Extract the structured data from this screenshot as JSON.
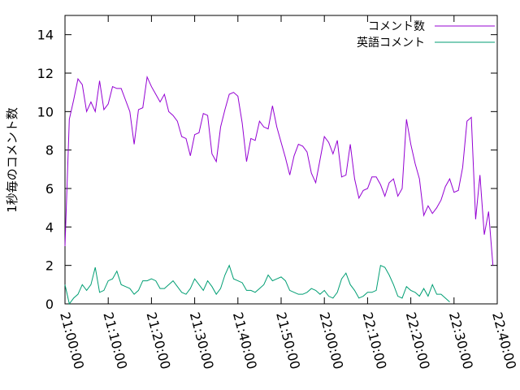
{
  "chart_data": {
    "type": "line",
    "title": "",
    "xlabel": "",
    "ylabel": "1秒毎のコメント数",
    "xlim": [
      "21:00:00",
      "22:40:00"
    ],
    "ylim": [
      0,
      15
    ],
    "x_ticks": [
      "21:00:00",
      "21:10:00",
      "21:20:00",
      "21:30:00",
      "21:40:00",
      "21:50:00",
      "22:00:00",
      "22:10:00",
      "22:20:00",
      "22:30:00",
      "22:40:00"
    ],
    "y_ticks": [
      "0",
      "2",
      "4",
      "6",
      "8",
      "10",
      "12",
      "14"
    ],
    "grid": false,
    "legend_position": "top-right",
    "series": [
      {
        "name": "コメント数",
        "color": "#9400d3",
        "points": [
          [
            "21:00:00",
            3.0
          ],
          [
            "21:01:00",
            9.6
          ],
          [
            "21:02:00",
            10.6
          ],
          [
            "21:03:00",
            11.7
          ],
          [
            "21:04:00",
            11.4
          ],
          [
            "21:05:00",
            10.0
          ],
          [
            "21:06:00",
            10.5
          ],
          [
            "21:07:00",
            10.0
          ],
          [
            "21:08:00",
            11.6
          ],
          [
            "21:09:00",
            10.1
          ],
          [
            "21:10:00",
            10.4
          ],
          [
            "21:11:00",
            11.3
          ],
          [
            "21:12:00",
            11.2
          ],
          [
            "21:13:00",
            11.2
          ],
          [
            "21:14:00",
            10.6
          ],
          [
            "21:15:00",
            10.0
          ],
          [
            "21:16:00",
            8.3
          ],
          [
            "21:17:00",
            10.1
          ],
          [
            "21:18:00",
            10.2
          ],
          [
            "21:19:00",
            11.8
          ],
          [
            "21:20:00",
            11.3
          ],
          [
            "21:21:00",
            10.9
          ],
          [
            "21:22:00",
            10.5
          ],
          [
            "21:23:00",
            10.9
          ],
          [
            "21:24:00",
            10.0
          ],
          [
            "21:25:00",
            9.8
          ],
          [
            "21:26:00",
            9.5
          ],
          [
            "21:27:00",
            8.7
          ],
          [
            "21:28:00",
            8.6
          ],
          [
            "21:29:00",
            7.7
          ],
          [
            "21:30:00",
            8.8
          ],
          [
            "21:31:00",
            8.9
          ],
          [
            "21:32:00",
            9.9
          ],
          [
            "21:33:00",
            9.8
          ],
          [
            "21:34:00",
            7.8
          ],
          [
            "21:35:00",
            7.4
          ],
          [
            "21:36:00",
            9.2
          ],
          [
            "21:37:00",
            10.1
          ],
          [
            "21:38:00",
            10.9
          ],
          [
            "21:39:00",
            11.0
          ],
          [
            "21:40:00",
            10.8
          ],
          [
            "21:41:00",
            9.4
          ],
          [
            "21:42:00",
            7.4
          ],
          [
            "21:43:00",
            8.6
          ],
          [
            "21:44:00",
            8.5
          ],
          [
            "21:45:00",
            9.5
          ],
          [
            "21:46:00",
            9.2
          ],
          [
            "21:47:00",
            9.1
          ],
          [
            "21:48:00",
            10.3
          ],
          [
            "21:49:00",
            9.2
          ],
          [
            "21:50:00",
            8.4
          ],
          [
            "21:51:00",
            7.6
          ],
          [
            "21:52:00",
            6.7
          ],
          [
            "21:53:00",
            7.7
          ],
          [
            "21:54:00",
            8.3
          ],
          [
            "21:55:00",
            8.2
          ],
          [
            "21:56:00",
            7.9
          ],
          [
            "21:57:00",
            6.8
          ],
          [
            "21:58:00",
            6.3
          ],
          [
            "21:59:00",
            7.5
          ],
          [
            "22:00:00",
            8.7
          ],
          [
            "22:01:00",
            8.4
          ],
          [
            "22:02:00",
            7.8
          ],
          [
            "22:03:00",
            8.5
          ],
          [
            "22:04:00",
            6.6
          ],
          [
            "22:05:00",
            6.7
          ],
          [
            "22:06:00",
            8.3
          ],
          [
            "22:07:00",
            6.5
          ],
          [
            "22:08:00",
            5.5
          ],
          [
            "22:09:00",
            5.9
          ],
          [
            "22:10:00",
            6.0
          ],
          [
            "22:11:00",
            6.6
          ],
          [
            "22:12:00",
            6.6
          ],
          [
            "22:13:00",
            6.2
          ],
          [
            "22:14:00",
            5.6
          ],
          [
            "22:15:00",
            6.3
          ],
          [
            "22:16:00",
            6.5
          ],
          [
            "22:17:00",
            5.6
          ],
          [
            "22:18:00",
            6.0
          ],
          [
            "22:19:00",
            9.6
          ],
          [
            "22:20:00",
            8.3
          ],
          [
            "22:21:00",
            7.3
          ],
          [
            "22:22:00",
            6.5
          ],
          [
            "22:23:00",
            4.6
          ],
          [
            "22:24:00",
            5.1
          ],
          [
            "22:25:00",
            4.7
          ],
          [
            "22:26:00",
            5.0
          ],
          [
            "22:27:00",
            5.4
          ],
          [
            "22:28:00",
            6.1
          ],
          [
            "22:29:00",
            6.5
          ],
          [
            "22:30:00",
            5.8
          ],
          [
            "22:31:00",
            5.9
          ],
          [
            "22:32:00",
            7.1
          ],
          [
            "22:33:00",
            9.5
          ],
          [
            "22:34:00",
            9.7
          ],
          [
            "22:35:00",
            4.4
          ],
          [
            "22:36:00",
            6.7
          ],
          [
            "22:37:00",
            3.6
          ],
          [
            "22:38:00",
            4.8
          ],
          [
            "22:39:00",
            2.0
          ]
        ]
      },
      {
        "name": "英語コメント",
        "color": "#009e73",
        "points": [
          [
            "21:00:00",
            1.0
          ],
          [
            "21:01:00",
            0.0
          ],
          [
            "21:02:00",
            0.3
          ],
          [
            "21:03:00",
            0.5
          ],
          [
            "21:04:00",
            1.0
          ],
          [
            "21:05:00",
            0.7
          ],
          [
            "21:06:00",
            1.0
          ],
          [
            "21:07:00",
            1.9
          ],
          [
            "21:08:00",
            0.6
          ],
          [
            "21:09:00",
            0.7
          ],
          [
            "21:10:00",
            1.2
          ],
          [
            "21:11:00",
            1.3
          ],
          [
            "21:12:00",
            1.7
          ],
          [
            "21:13:00",
            1.0
          ],
          [
            "21:14:00",
            0.9
          ],
          [
            "21:15:00",
            0.8
          ],
          [
            "21:16:00",
            0.5
          ],
          [
            "21:17:00",
            0.7
          ],
          [
            "21:18:00",
            1.2
          ],
          [
            "21:19:00",
            1.2
          ],
          [
            "21:20:00",
            1.3
          ],
          [
            "21:21:00",
            1.2
          ],
          [
            "21:22:00",
            0.8
          ],
          [
            "21:23:00",
            0.8
          ],
          [
            "21:24:00",
            1.0
          ],
          [
            "21:25:00",
            1.2
          ],
          [
            "21:26:00",
            0.9
          ],
          [
            "21:27:00",
            0.6
          ],
          [
            "21:28:00",
            0.5
          ],
          [
            "21:29:00",
            0.8
          ],
          [
            "21:30:00",
            1.3
          ],
          [
            "21:31:00",
            1.0
          ],
          [
            "21:32:00",
            0.7
          ],
          [
            "21:33:00",
            1.2
          ],
          [
            "21:34:00",
            0.9
          ],
          [
            "21:35:00",
            0.5
          ],
          [
            "21:36:00",
            0.8
          ],
          [
            "21:37:00",
            1.5
          ],
          [
            "21:38:00",
            2.0
          ],
          [
            "21:39:00",
            1.3
          ],
          [
            "21:40:00",
            1.2
          ],
          [
            "21:41:00",
            1.1
          ],
          [
            "21:42:00",
            0.7
          ],
          [
            "21:43:00",
            0.7
          ],
          [
            "21:44:00",
            0.6
          ],
          [
            "21:45:00",
            0.8
          ],
          [
            "21:46:00",
            1.0
          ],
          [
            "21:47:00",
            1.5
          ],
          [
            "21:48:00",
            1.2
          ],
          [
            "21:49:00",
            1.3
          ],
          [
            "21:50:00",
            1.4
          ],
          [
            "21:51:00",
            1.2
          ],
          [
            "21:52:00",
            0.7
          ],
          [
            "21:53:00",
            0.6
          ],
          [
            "21:54:00",
            0.5
          ],
          [
            "21:55:00",
            0.5
          ],
          [
            "21:56:00",
            0.6
          ],
          [
            "21:57:00",
            0.8
          ],
          [
            "21:58:00",
            0.7
          ],
          [
            "21:59:00",
            0.5
          ],
          [
            "22:00:00",
            0.7
          ],
          [
            "22:01:00",
            0.4
          ],
          [
            "22:02:00",
            0.3
          ],
          [
            "22:03:00",
            0.6
          ],
          [
            "22:04:00",
            1.3
          ],
          [
            "22:05:00",
            1.6
          ],
          [
            "22:06:00",
            1.0
          ],
          [
            "22:07:00",
            0.7
          ],
          [
            "22:08:00",
            0.3
          ],
          [
            "22:09:00",
            0.4
          ],
          [
            "22:10:00",
            0.6
          ],
          [
            "22:11:00",
            0.6
          ],
          [
            "22:12:00",
            0.7
          ],
          [
            "22:13:00",
            2.0
          ],
          [
            "22:14:00",
            1.9
          ],
          [
            "22:15:00",
            1.5
          ],
          [
            "22:16:00",
            1.0
          ],
          [
            "22:17:00",
            0.4
          ],
          [
            "22:18:00",
            0.3
          ],
          [
            "22:19:00",
            0.9
          ],
          [
            "22:20:00",
            0.7
          ],
          [
            "22:21:00",
            0.6
          ],
          [
            "22:22:00",
            0.4
          ],
          [
            "22:23:00",
            0.8
          ],
          [
            "22:24:00",
            0.4
          ],
          [
            "22:25:00",
            1.0
          ],
          [
            "22:26:00",
            0.5
          ],
          [
            "22:27:00",
            0.5
          ],
          [
            "22:28:00",
            0.3
          ],
          [
            "22:29:00",
            0.1
          ]
        ]
      }
    ]
  }
}
